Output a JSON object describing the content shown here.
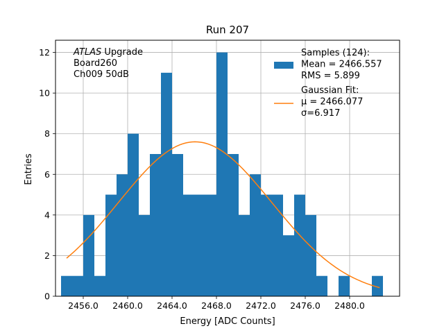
{
  "chart_data": {
    "type": "bar",
    "title": "Run 207",
    "xlabel": "Energy [ADC Counts]",
    "ylabel": "Entries",
    "xlim": [
      2453.5,
      2484.5
    ],
    "ylim": [
      0,
      12.6
    ],
    "grid": true,
    "legend_position": "top-right",
    "bin_width": 1.0,
    "x_ticks": [
      2456.0,
      2460.0,
      2464.0,
      2468.0,
      2472.0,
      2476.0,
      2480.0
    ],
    "x_tick_labels": [
      "2456.0",
      "2460.0",
      "2464.0",
      "2468.0",
      "2472.0",
      "2476.0",
      "2480.0"
    ],
    "y_ticks": [
      0,
      2,
      4,
      6,
      8,
      10,
      12
    ],
    "y_tick_labels": [
      "0",
      "2",
      "4",
      "6",
      "8",
      "10",
      "12"
    ],
    "bins": [
      {
        "x": 2454.5,
        "value": 1
      },
      {
        "x": 2455.5,
        "value": 1
      },
      {
        "x": 2456.5,
        "value": 4
      },
      {
        "x": 2457.5,
        "value": 1
      },
      {
        "x": 2458.5,
        "value": 5
      },
      {
        "x": 2459.5,
        "value": 6
      },
      {
        "x": 2460.5,
        "value": 8
      },
      {
        "x": 2461.5,
        "value": 4
      },
      {
        "x": 2462.5,
        "value": 7
      },
      {
        "x": 2463.5,
        "value": 11
      },
      {
        "x": 2464.5,
        "value": 7
      },
      {
        "x": 2465.5,
        "value": 5
      },
      {
        "x": 2466.5,
        "value": 5
      },
      {
        "x": 2467.5,
        "value": 5
      },
      {
        "x": 2468.5,
        "value": 12
      },
      {
        "x": 2469.5,
        "value": 7
      },
      {
        "x": 2470.5,
        "value": 4
      },
      {
        "x": 2471.5,
        "value": 6
      },
      {
        "x": 2472.5,
        "value": 5
      },
      {
        "x": 2473.5,
        "value": 5
      },
      {
        "x": 2474.5,
        "value": 3
      },
      {
        "x": 2475.5,
        "value": 5
      },
      {
        "x": 2476.5,
        "value": 4
      },
      {
        "x": 2477.5,
        "value": 1
      },
      {
        "x": 2478.5,
        "value": 0
      },
      {
        "x": 2479.5,
        "value": 1
      },
      {
        "x": 2480.5,
        "value": 0
      },
      {
        "x": 2481.5,
        "value": 0
      },
      {
        "x": 2482.5,
        "value": 1
      }
    ],
    "series": [
      {
        "name": "Samples (124):\n Mean = 2466.557\n RMS = 5.899",
        "kind": "histogram",
        "color": "#1f77b4"
      },
      {
        "name": "Gaussian Fit:\n μ = 2466.077\n σ=6.917",
        "kind": "line",
        "color": "#ff7f0e",
        "mu": 2466.077,
        "sigma": 6.917,
        "amplitude": 7.6,
        "x_range": [
          2454.5,
          2482.7
        ]
      }
    ],
    "annotation": {
      "italic": "ATLAS",
      "lines": [
        " Upgrade",
        " Board260",
        " Ch009 50dB"
      ]
    }
  }
}
